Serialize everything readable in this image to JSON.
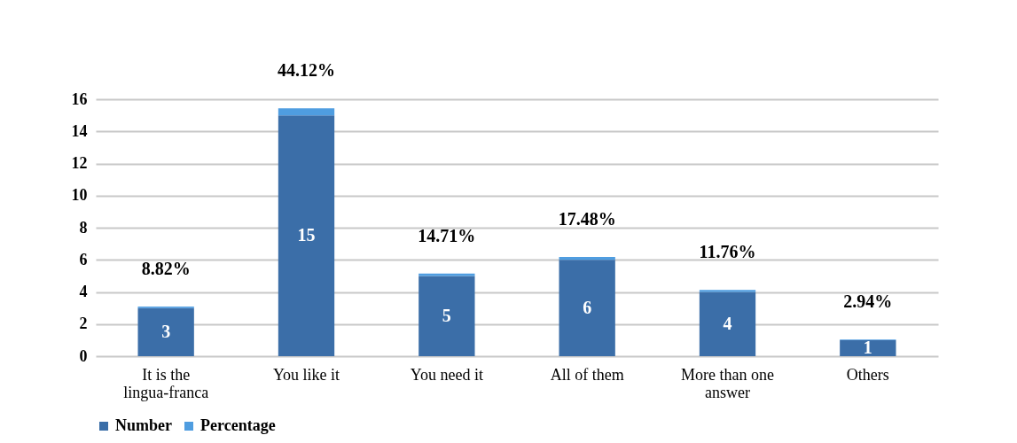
{
  "chart_data": {
    "type": "bar",
    "categories": [
      "It is the lingua-franca",
      "You like it",
      "You need it",
      "All of them",
      "More than one answer",
      "Others"
    ],
    "stacked": true,
    "ylim": [
      0,
      16
    ],
    "yticks": [
      0,
      2,
      4,
      6,
      8,
      10,
      12,
      14,
      16
    ],
    "grid": "y",
    "legend": "bottom",
    "series": [
      {
        "name": "Number",
        "color": "#3b6ea8",
        "values": [
          3,
          15,
          5,
          6,
          4,
          1
        ],
        "value_labels": [
          "3",
          "15",
          "5",
          "6",
          "4",
          "1"
        ]
      },
      {
        "name": "Percentage",
        "color": "#4f9de0",
        "values": [
          0.0882,
          0.4412,
          0.1471,
          0.1748,
          0.1176,
          0.0294
        ],
        "value_labels": [
          "8.82%",
          "44.12%",
          "14.71%",
          "17.48%",
          "11.76%",
          "2.94%"
        ]
      }
    ]
  }
}
